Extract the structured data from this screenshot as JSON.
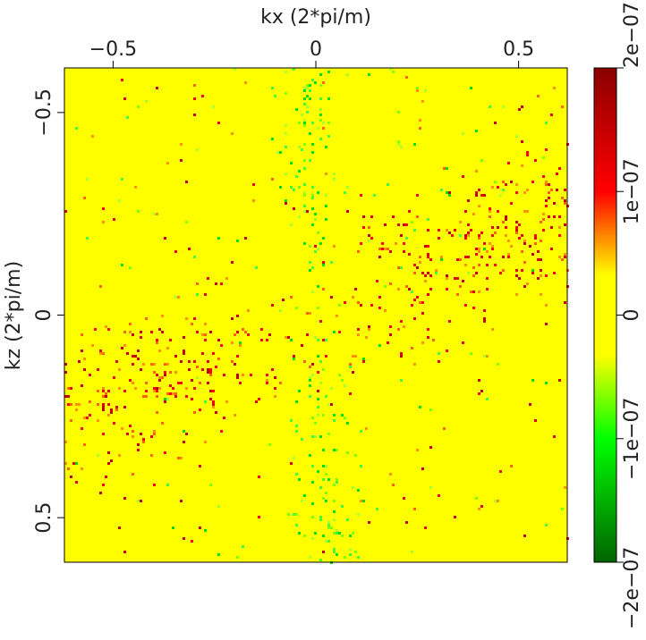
{
  "chart_data": {
    "type": "heatmap",
    "title": "",
    "xlabel": "kx (2*pi/m)",
    "ylabel": "kz (2*pi/m)",
    "xlim": [
      -0.62,
      0.62
    ],
    "ylim": [
      -0.61,
      0.61
    ],
    "y_axis_inverted": true,
    "x_axis_position": "top",
    "xticks": [
      -0.5,
      0,
      0.5
    ],
    "xtick_labels": [
      "−0.5",
      "0",
      "0.5"
    ],
    "yticks": [
      -0.5,
      0,
      0.5
    ],
    "ytick_labels": [
      "−0.5",
      "0",
      "0.5"
    ],
    "colorbar": {
      "placement": "right",
      "range": [
        -2e-07,
        2e-07
      ],
      "ticks": [
        -2e-07,
        -1e-07,
        0,
        1e-07,
        2e-07
      ],
      "tick_labels": [
        "−2e−07",
        "−1e−07",
        "0",
        "1e−07",
        "2e−07"
      ],
      "colors": [
        "#006400",
        "#00ff00",
        "#ffff00",
        "#ff0000",
        "#8b0000"
      ]
    },
    "description_pattern": {
      "background_value": 0,
      "positive_band": "diagonal band from lower-left to upper-right through origin with scattered positive (red/orange) values",
      "negative_band": "near-vertical band along kx≈0 with scattered negative (green) values"
    }
  }
}
